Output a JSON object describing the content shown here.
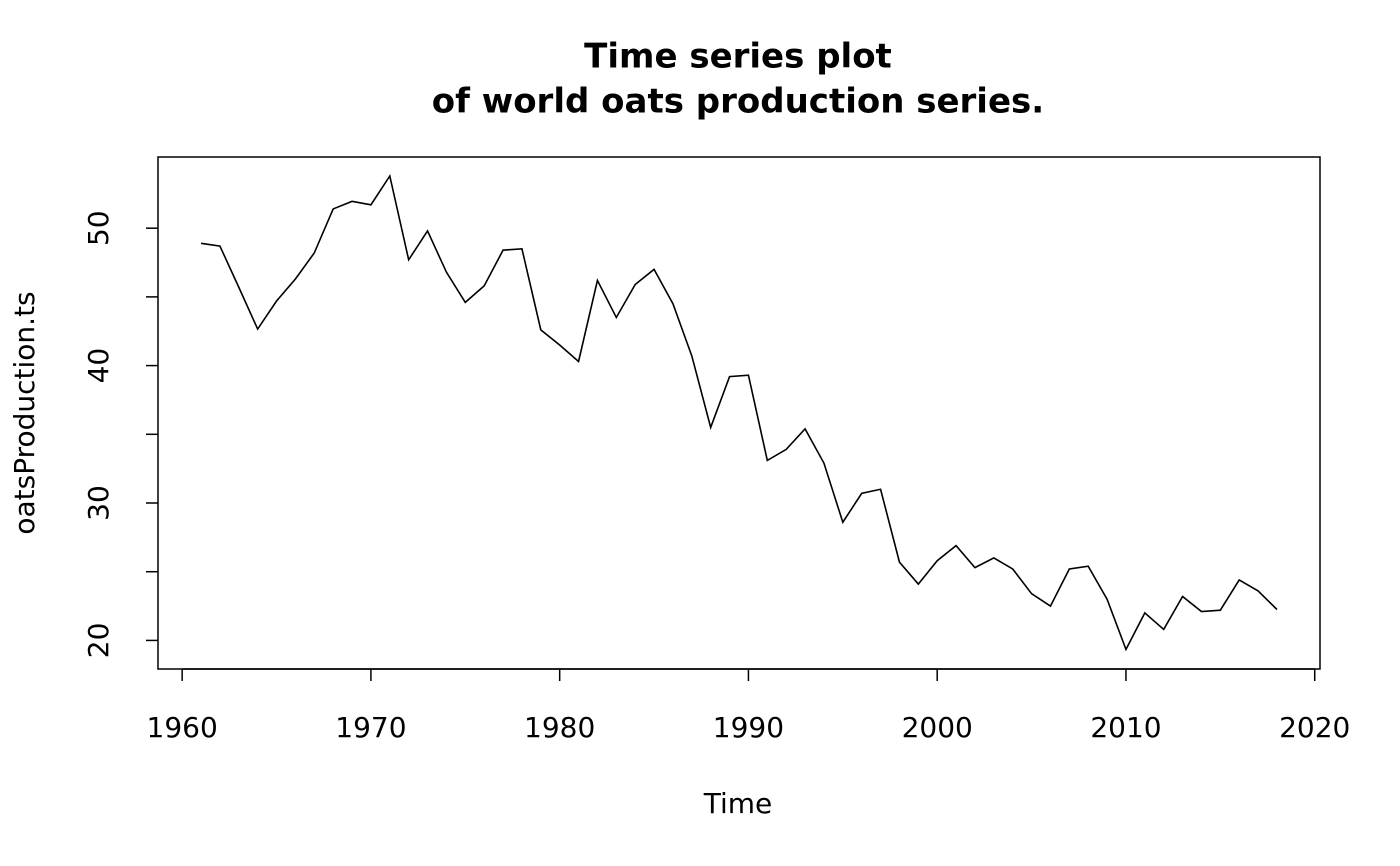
{
  "chart_data": {
    "type": "line",
    "title": [
      "Time series plot",
      "of world oats production series."
    ],
    "x_label": "Time",
    "y_label": "oatsProduction.ts",
    "x": [
      1961,
      1962,
      1963,
      1964,
      1965,
      1966,
      1967,
      1968,
      1969,
      1970,
      1971,
      1972,
      1973,
      1974,
      1975,
      1976,
      1977,
      1978,
      1979,
      1980,
      1981,
      1982,
      1983,
      1984,
      1985,
      1986,
      1987,
      1988,
      1989,
      1990,
      1991,
      1992,
      1993,
      1994,
      1995,
      1996,
      1997,
      1998,
      1999,
      2000,
      2001,
      2002,
      2003,
      2004,
      2005,
      2006,
      2007,
      2008,
      2009,
      2010,
      2011,
      2012,
      2013,
      2014,
      2015,
      2016,
      2017,
      2018
    ],
    "series": [
      {
        "color": "#000000",
        "values": [
          48.9,
          48.7,
          45.7,
          42.66,
          44.7,
          46.3,
          48.2,
          51.4,
          51.95,
          51.7,
          53.8,
          47.7,
          49.8,
          46.8,
          44.6,
          45.8,
          48.4,
          48.5,
          42.6,
          41.5,
          40.3,
          46.2,
          43.5,
          45.9,
          47.0,
          44.5,
          40.7,
          35.5,
          39.2,
          39.3,
          33.1,
          33.9,
          35.4,
          32.9,
          28.6,
          30.7,
          31.0,
          25.7,
          24.1,
          25.8,
          26.9,
          25.3,
          26.0,
          25.2,
          23.4,
          22.5,
          25.2,
          25.4,
          23.0,
          19.35,
          22.0,
          20.8,
          23.2,
          22.1,
          22.2,
          24.4,
          23.6,
          22.25
        ]
      }
    ],
    "xlim": [
      1958.72,
      2020.28
    ],
    "xticks": [
      1960,
      1970,
      1980,
      1990,
      2000,
      2010,
      2020
    ],
    "ylim": [
      17.92,
      55.18
    ],
    "yticks": [
      20,
      30,
      40,
      50
    ],
    "yminorticks": [
      25,
      35,
      45
    ],
    "grid": false
  }
}
